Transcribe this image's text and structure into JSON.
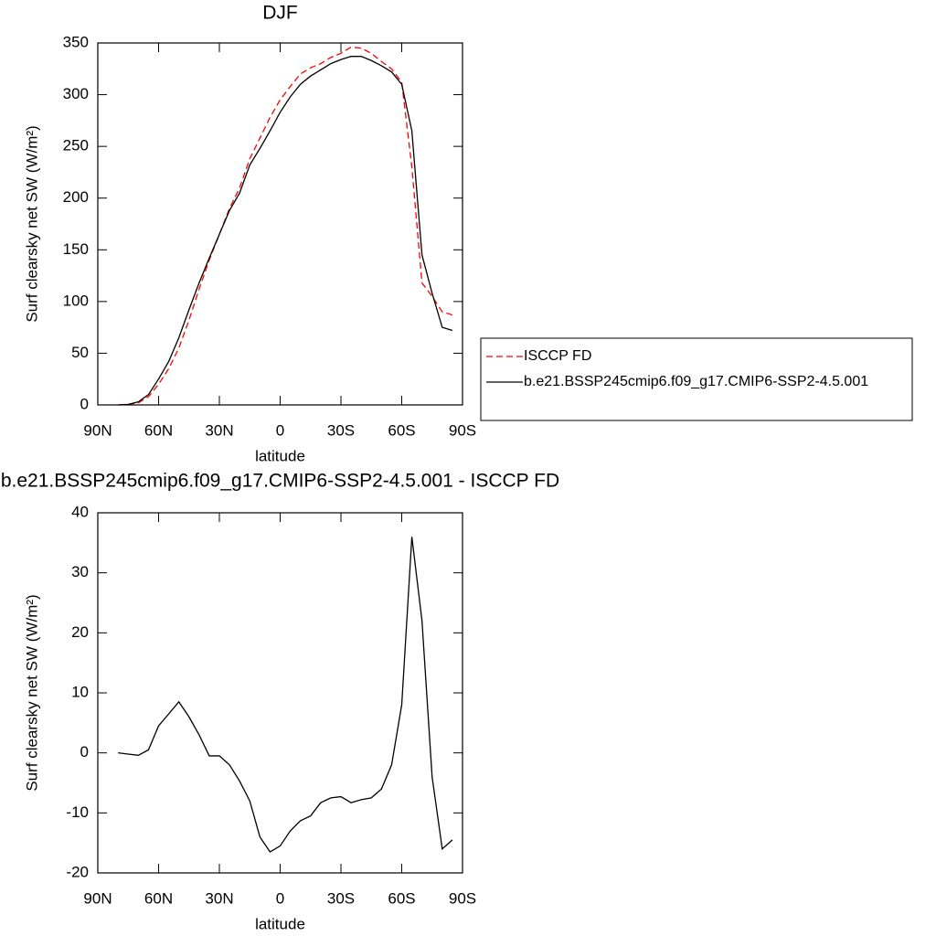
{
  "chart_data": [
    {
      "type": "line",
      "title": "DJF",
      "xlabel": "latitude",
      "ylabel": "Surf clearsky net SW (W/m²)",
      "x": [
        80,
        75,
        70,
        65,
        60,
        55,
        50,
        45,
        40,
        35,
        30,
        25,
        20,
        15,
        10,
        5,
        0,
        -5,
        -10,
        -15,
        -20,
        -25,
        -30,
        -35,
        -40,
        -45,
        -50,
        -55,
        -60,
        -65,
        -70,
        -75,
        -80,
        -85
      ],
      "series": [
        {
          "name": "ISCCP FD",
          "color": "#ff0000",
          "linestyle": "dashed",
          "values": [
            0,
            0.5,
            2,
            8,
            20,
            35,
            55,
            82,
            112,
            140,
            165,
            190,
            210,
            238,
            258,
            278,
            295,
            308,
            320,
            326,
            330,
            336,
            340,
            346,
            345,
            340,
            332,
            325,
            312,
            230,
            118,
            105,
            90,
            87
          ]
        },
        {
          "name": "b.e21.BSSP245cmip6.f09_g17.CMIP6-SSP2-4.5.001",
          "color": "#000000",
          "linestyle": "solid",
          "values": [
            0,
            0.5,
            3,
            10,
            25,
            42,
            65,
            92,
            118,
            142,
            165,
            188,
            205,
            232,
            248,
            265,
            283,
            298,
            310,
            318,
            324,
            330,
            334,
            337,
            337,
            333,
            328,
            322,
            310,
            265,
            145,
            108,
            75,
            72
          ]
        }
      ],
      "xlim": [
        90,
        -90
      ],
      "xticks": [
        {
          "value": 90,
          "label": "90N"
        },
        {
          "value": 60,
          "label": "60N"
        },
        {
          "value": 30,
          "label": "30N"
        },
        0,
        {
          "value": -30,
          "label": "30S"
        },
        {
          "value": -60,
          "label": "60S"
        },
        {
          "value": -90,
          "label": "90S"
        }
      ],
      "ylim": [
        0,
        350
      ],
      "yticks": [
        0,
        50,
        100,
        150,
        200,
        250,
        300,
        350
      ],
      "legend": "right"
    },
    {
      "type": "line",
      "title": "b.e21.BSSP245cmip6.f09_g17.CMIP6-SSP2-4.5.001 - ISCCP FD",
      "xlabel": "latitude",
      "ylabel": "Surf clearsky net SW (W/m²)",
      "x": [
        80,
        75,
        70,
        65,
        60,
        55,
        50,
        45,
        40,
        35,
        30,
        25,
        20,
        15,
        10,
        5,
        0,
        -5,
        -10,
        -15,
        -20,
        -25,
        -30,
        -35,
        -40,
        -45,
        -50,
        -55,
        -60,
        -65,
        -70,
        -75,
        -80,
        -85
      ],
      "series": [
        {
          "color": "#000000",
          "linestyle": "solid",
          "values": [
            0,
            -0.2,
            -0.4,
            0.5,
            4.5,
            6.5,
            8.5,
            6,
            3,
            -0.5,
            -0.5,
            -2,
            -4.7,
            -8,
            -14,
            -16.5,
            -15.5,
            -13,
            -11.3,
            -10.5,
            -8.3,
            -7.5,
            -7.3,
            -8.3,
            -7.8,
            -7.5,
            -6,
            -2,
            8,
            36,
            22,
            -4,
            -16,
            -14.5
          ]
        }
      ],
      "xlim": [
        90,
        -90
      ],
      "xticks": [
        {
          "value": 90,
          "label": "90N"
        },
        {
          "value": 60,
          "label": "60N"
        },
        {
          "value": 30,
          "label": "30N"
        },
        0,
        {
          "value": -30,
          "label": "30S"
        },
        {
          "value": -60,
          "label": "60S"
        },
        {
          "value": -90,
          "label": "90S"
        }
      ],
      "ylim": [
        -20,
        40
      ],
      "yticks": [
        -20,
        -10,
        0,
        10,
        20,
        30,
        40
      ]
    }
  ]
}
